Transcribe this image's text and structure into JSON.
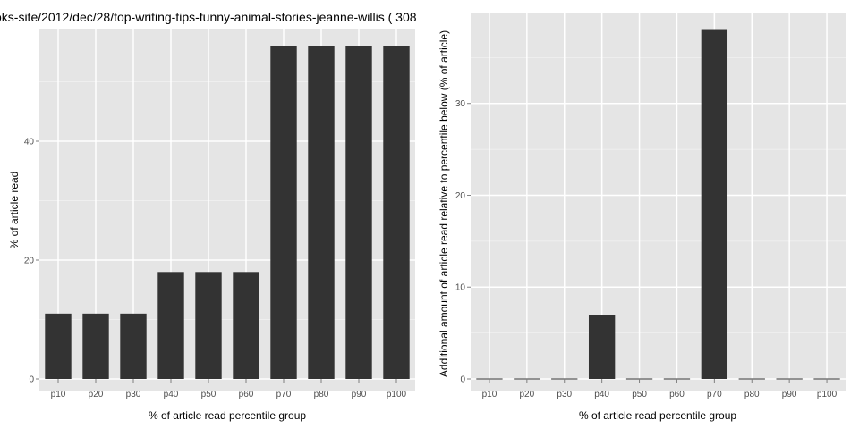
{
  "chart_data": [
    {
      "type": "bar",
      "title": "oks-site/2012/dec/28/top-writing-tips-funny-animal-stories-jeanne-willis ( 308",
      "xlabel": "% of article read percentile group",
      "ylabel": "% of article read",
      "categories": [
        "p10",
        "p20",
        "p30",
        "p40",
        "p50",
        "p60",
        "p70",
        "p80",
        "p90",
        "p100"
      ],
      "values": [
        11,
        11,
        11,
        18,
        18,
        18,
        56,
        56,
        56,
        56
      ],
      "ylim": [
        0,
        58.8
      ],
      "yticks": [
        0,
        20,
        40
      ],
      "grid": true,
      "colors": {
        "panel": "#e5e5e5",
        "grid_major": "#ffffff",
        "grid_minor": "#f2f2f2",
        "bar": "#333333"
      }
    },
    {
      "type": "bar",
      "title": "",
      "xlabel": "% of article read percentile group",
      "ylabel": "Additional amount of article read relative to percentile below (% of article)",
      "categories": [
        "p10",
        "p20",
        "p30",
        "p40",
        "p50",
        "p60",
        "p70",
        "p80",
        "p90",
        "p100"
      ],
      "values": [
        0,
        0,
        0,
        7,
        0,
        0,
        38,
        0,
        0,
        0
      ],
      "ylim": [
        0,
        39.9
      ],
      "yticks": [
        0,
        10,
        20,
        30
      ],
      "grid": true,
      "colors": {
        "panel": "#e5e5e5",
        "grid_major": "#ffffff",
        "grid_minor": "#f2f2f2",
        "bar": "#333333"
      }
    }
  ]
}
